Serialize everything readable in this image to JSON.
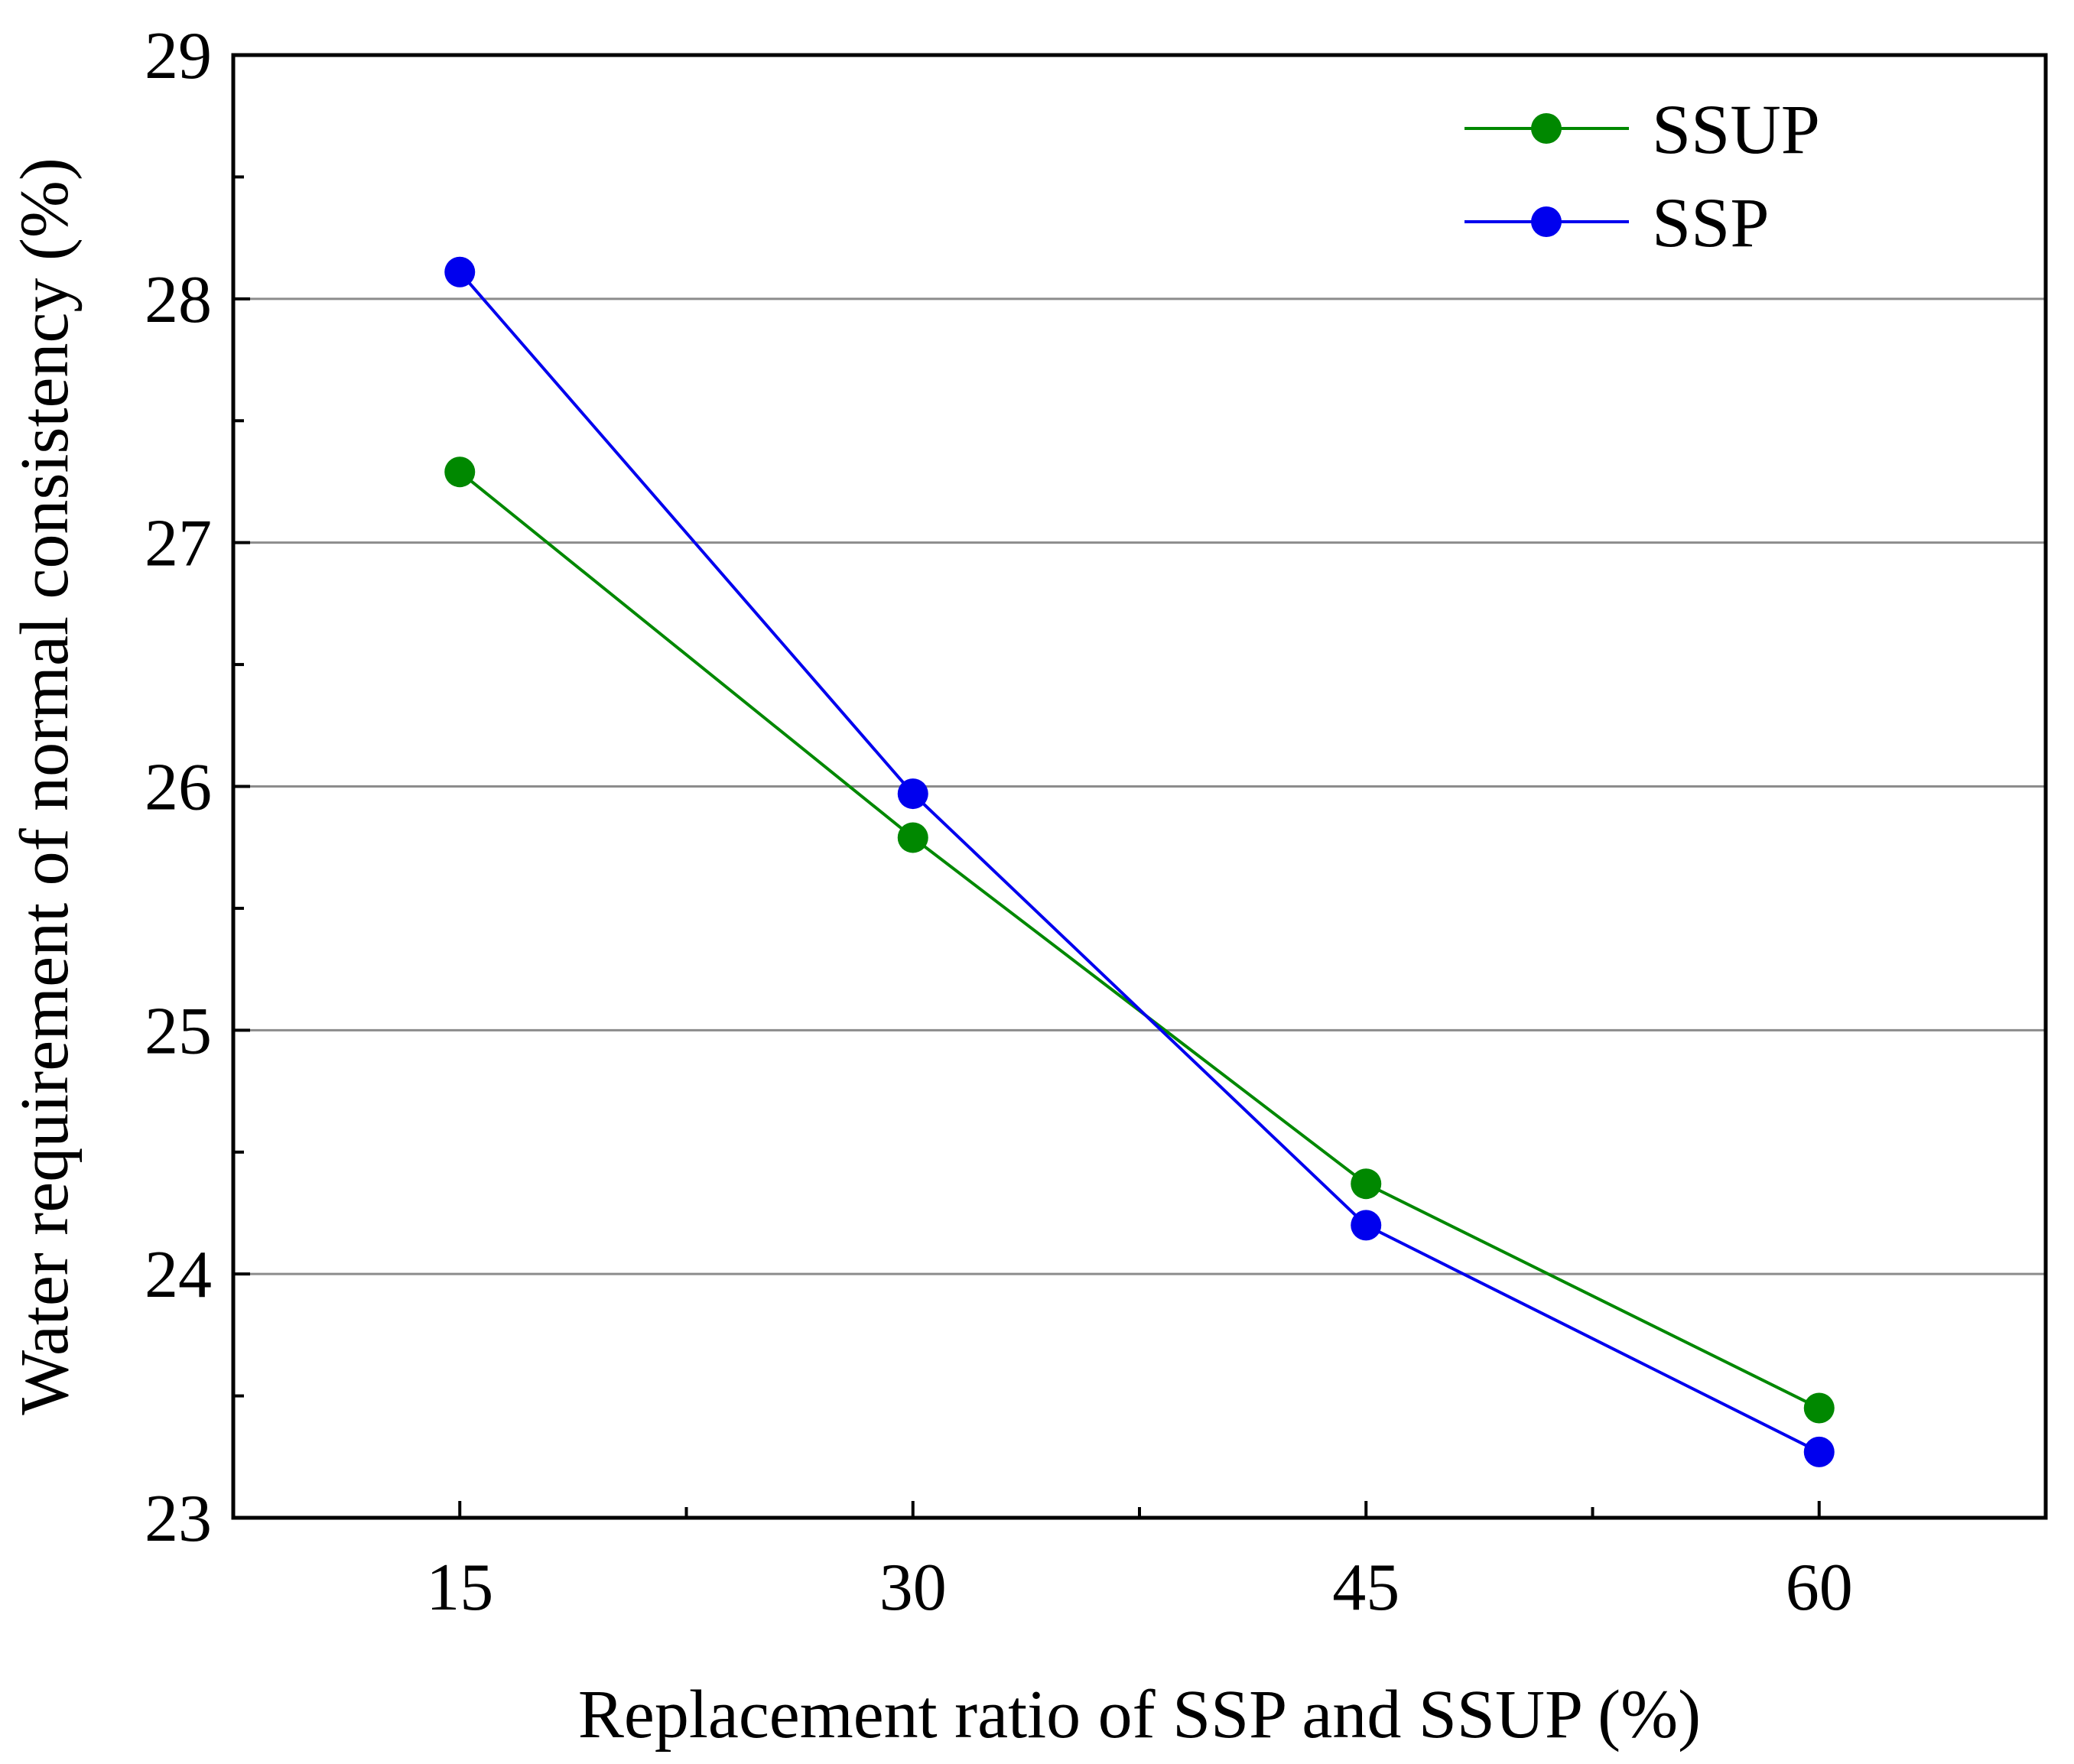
{
  "chart_data": {
    "type": "line",
    "title": "",
    "xlabel": "Replacement ratio of SSP and SSUP (%)",
    "ylabel": "Water requirement of normal consistency (%)",
    "x": [
      15,
      30,
      45,
      60
    ],
    "x_tick_labels": [
      "15",
      "30",
      "45",
      "60"
    ],
    "y_tick_labels": [
      "23",
      "24",
      "25",
      "26",
      "27",
      "28",
      "29"
    ],
    "xlim": [
      7.5,
      67.5
    ],
    "ylim": [
      23,
      29
    ],
    "y_ticks": [
      23,
      24,
      25,
      26,
      27,
      28,
      29
    ],
    "grid": "horizontal",
    "legend_position": "top-right",
    "series": [
      {
        "name": "SSUP",
        "color": "#008800",
        "values": [
          27.29,
          25.79,
          24.37,
          23.45
        ]
      },
      {
        "name": "SSP",
        "color": "#0000ee",
        "values": [
          28.11,
          25.97,
          24.2,
          23.27
        ]
      }
    ]
  }
}
